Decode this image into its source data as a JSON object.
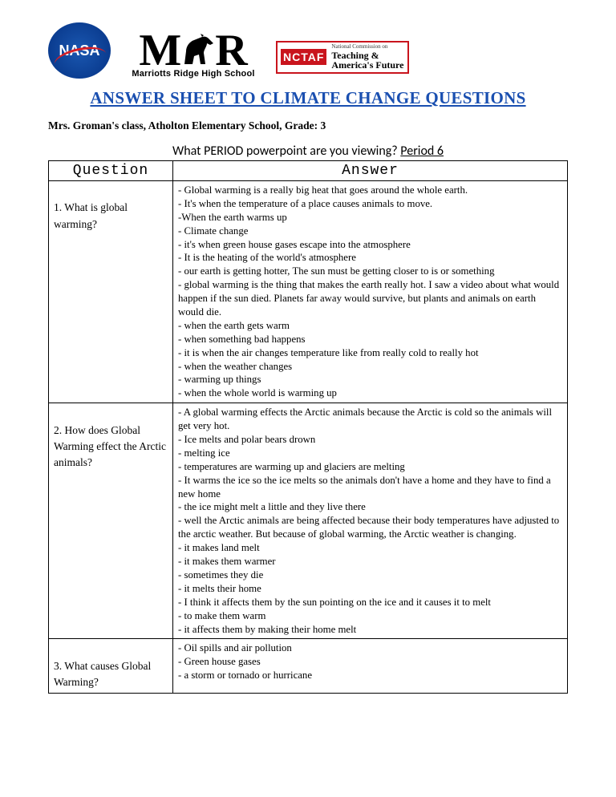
{
  "logos": {
    "nasa_text": "NASA",
    "mr_letters": [
      "M",
      "R"
    ],
    "mr_sub": "Marriotts Ridge High School",
    "nctaf_badge": "NCTAF",
    "nctaf_small": "National Commission on",
    "nctaf_line1": "Teaching",
    "nctaf_amp": " & ",
    "nctaf_line2": "America's Future"
  },
  "title": "ANSWER SHEET TO CLIMATE CHANGE QUESTIONS",
  "classline": "Mrs. Groman's class, Atholton Elementary School, Grade: 3",
  "period_label": "What PERIOD powerpoint are you viewing? ",
  "period_value": "Period 6",
  "table": {
    "headers": [
      "Question",
      "Answer"
    ],
    "rows": [
      {
        "q_num": "1.",
        "q_text": "What is global warming?",
        "answers": [
          "- Global warming is a really big heat that goes around the whole earth.",
          "- It's when the temperature of a place causes animals to move.",
          "-When the earth warms up",
          "- Climate change",
          "- it's when green house gases escape into the atmosphere",
          "- It is the heating of the world's atmosphere",
          "- our earth is getting hotter, The sun must be getting closer to is or something",
          "- global warming is the thing that makes the earth really hot. I saw a video about what would happen if the sun died. Planets far away would survive, but plants and animals on earth would die.",
          "- when the earth gets warm",
          "- when something bad happens",
          "- it is when the air changes temperature like from really cold to really hot",
          "- when the weather changes",
          "- warming up things",
          "- when the whole world is warming up"
        ]
      },
      {
        "q_num": "2.",
        "q_text": "How does Global Warming effect the Arctic animals?",
        "answers": [
          " - A global warming effects the Arctic animals because the Arctic is cold so the animals will get very hot.",
          "- Ice melts and polar bears drown",
          "- melting ice",
          "- temperatures are warming up and glaciers are melting",
          "- It warms the ice so the ice melts so the animals don't have a home and they have to find a new home",
          "- the ice might melt a little and they live there",
          "- well the Arctic animals are being affected because their body temperatures have adjusted to the arctic weather. But because of global warming, the Arctic weather is changing.",
          "- it makes land melt",
          "- it makes them warmer",
          "- sometimes they die",
          "- it melts their home",
          "- I think it affects them by the sun pointing on the ice and it causes it to melt",
          "- to make them warm",
          "- it affects them by making their home melt"
        ]
      },
      {
        "q_num": "3.",
        "q_text": "What causes Global Warming?",
        "answers": [
          "- Oil spills and air pollution",
          "- Green house gases",
          "- a storm or tornado or hurricane"
        ]
      }
    ]
  },
  "colors": {
    "title": "#1a4fb0",
    "nasa": "#0b3d91",
    "nctaf": "#c9141d",
    "border": "#000000",
    "bg": "#ffffff"
  }
}
